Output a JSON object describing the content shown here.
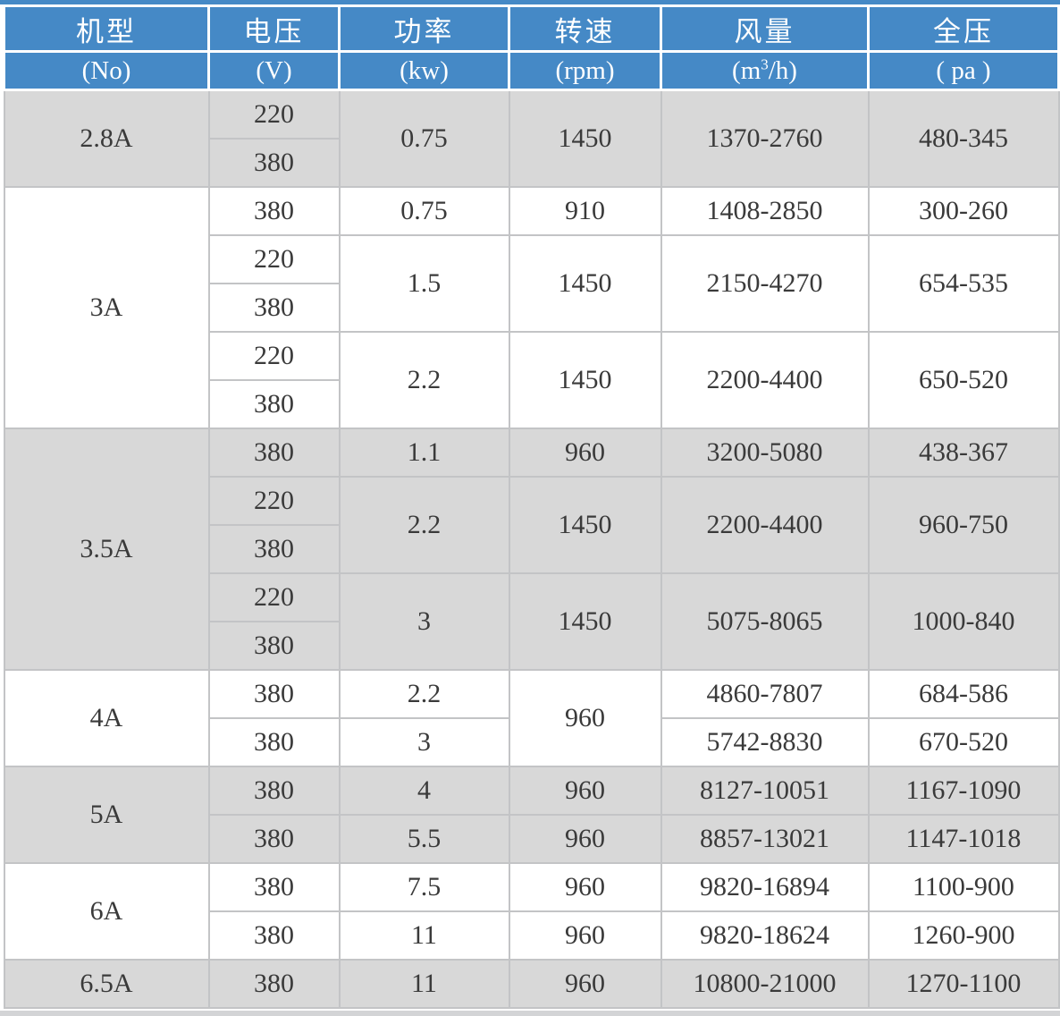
{
  "header": {
    "cols": [
      {
        "title": "机型",
        "unit": "(No)"
      },
      {
        "title": "电压",
        "unit": "(V)"
      },
      {
        "title": "功率",
        "unit": "(kw)"
      },
      {
        "title": "转速",
        "unit": "(rpm)"
      },
      {
        "title": "风量",
        "unit_pre": "(m",
        "unit_sup": "3",
        "unit_post": "/h)"
      },
      {
        "title": "全压",
        "unit": "( pa )"
      }
    ]
  },
  "sections": [
    {
      "model": "2.8A",
      "rows": [
        {
          "voltage": "220",
          "power": "0.75",
          "rpm": "1450",
          "airflow": "1370-2760",
          "pressure": "480-345"
        },
        {
          "voltage": "380"
        }
      ]
    },
    {
      "model": "3A",
      "rows": [
        {
          "voltage": "380",
          "power": "0.75",
          "rpm": "910",
          "airflow": "1408-2850",
          "pressure": "300-260"
        },
        {
          "voltage": "220",
          "power": "1.5",
          "rpm": "1450",
          "airflow": "2150-4270",
          "pressure": "654-535"
        },
        {
          "voltage": "380"
        },
        {
          "voltage": "220",
          "power": "2.2",
          "rpm": "1450",
          "airflow": "2200-4400",
          "pressure": "650-520"
        },
        {
          "voltage": "380"
        }
      ]
    },
    {
      "model": "3.5A",
      "rows": [
        {
          "voltage": "380",
          "power": "1.1",
          "rpm": "960",
          "airflow": "3200-5080",
          "pressure": "438-367"
        },
        {
          "voltage": "220",
          "power": "2.2",
          "rpm": "1450",
          "airflow": "2200-4400",
          "pressure": "960-750"
        },
        {
          "voltage": "380"
        },
        {
          "voltage": "220",
          "power": "3",
          "rpm": "1450",
          "airflow": "5075-8065",
          "pressure": "1000-840"
        },
        {
          "voltage": "380"
        }
      ]
    },
    {
      "model": "4A",
      "rows": [
        {
          "voltage": "380",
          "power": "2.2",
          "rpm": "960",
          "airflow": "4860-7807",
          "pressure": "684-586"
        },
        {
          "voltage": "380",
          "power": "3",
          "airflow": "5742-8830",
          "pressure": "670-520"
        }
      ]
    },
    {
      "model": "5A",
      "rows": [
        {
          "voltage": "380",
          "power": "4",
          "rpm": "960",
          "airflow": "8127-10051",
          "pressure": "1167-1090"
        },
        {
          "voltage": "380",
          "power": "5.5",
          "rpm": "960",
          "airflow": "8857-13021",
          "pressure": "1147-1018"
        }
      ]
    },
    {
      "model": "6A",
      "rows": [
        {
          "voltage": "380",
          "power": "7.5",
          "rpm": "960",
          "airflow": "9820-16894",
          "pressure": "1100-900"
        },
        {
          "voltage": "380",
          "power": "11",
          "rpm": "960",
          "airflow": "9820-18624",
          "pressure": "1260-900"
        }
      ]
    },
    {
      "model": "6.5A",
      "rows": [
        {
          "voltage": "380",
          "power": "11",
          "rpm": "960",
          "airflow": "10800-21000",
          "pressure": "1270-1100"
        }
      ]
    }
  ],
  "colors": {
    "header_blue": "#4589c6",
    "row_gray": "#d8d8d8",
    "row_white": "#ffffff",
    "border_gray": "#c3c4c6",
    "text_dark": "#3a3a3a"
  },
  "chart_data": {
    "type": "table",
    "columns": [
      "机型 (No)",
      "电压 (V)",
      "功率 (kw)",
      "转速 (rpm)",
      "风量 (m³/h)",
      "全压 (pa)"
    ],
    "rows": [
      [
        "2.8A",
        "220/380",
        "0.75",
        "1450",
        "1370-2760",
        "480-345"
      ],
      [
        "3A",
        "380",
        "0.75",
        "910",
        "1408-2850",
        "300-260"
      ],
      [
        "3A",
        "220/380",
        "1.5",
        "1450",
        "2150-4270",
        "654-535"
      ],
      [
        "3A",
        "220/380",
        "2.2",
        "1450",
        "2200-4400",
        "650-520"
      ],
      [
        "3.5A",
        "380",
        "1.1",
        "960",
        "3200-5080",
        "438-367"
      ],
      [
        "3.5A",
        "220/380",
        "2.2",
        "1450",
        "2200-4400",
        "960-750"
      ],
      [
        "3.5A",
        "220/380",
        "3",
        "1450",
        "5075-8065",
        "1000-840"
      ],
      [
        "4A",
        "380",
        "2.2",
        "960",
        "4860-7807",
        "684-586"
      ],
      [
        "4A",
        "380",
        "3",
        "960",
        "5742-8830",
        "670-520"
      ],
      [
        "5A",
        "380",
        "4",
        "960",
        "8127-10051",
        "1167-1090"
      ],
      [
        "5A",
        "380",
        "5.5",
        "960",
        "8857-13021",
        "1147-1018"
      ],
      [
        "6A",
        "380",
        "7.5",
        "960",
        "9820-16894",
        "1100-900"
      ],
      [
        "6A",
        "380",
        "11",
        "960",
        "9820-18624",
        "1260-900"
      ],
      [
        "6.5A",
        "380",
        "11",
        "960",
        "10800-21000",
        "1270-1100"
      ]
    ]
  }
}
